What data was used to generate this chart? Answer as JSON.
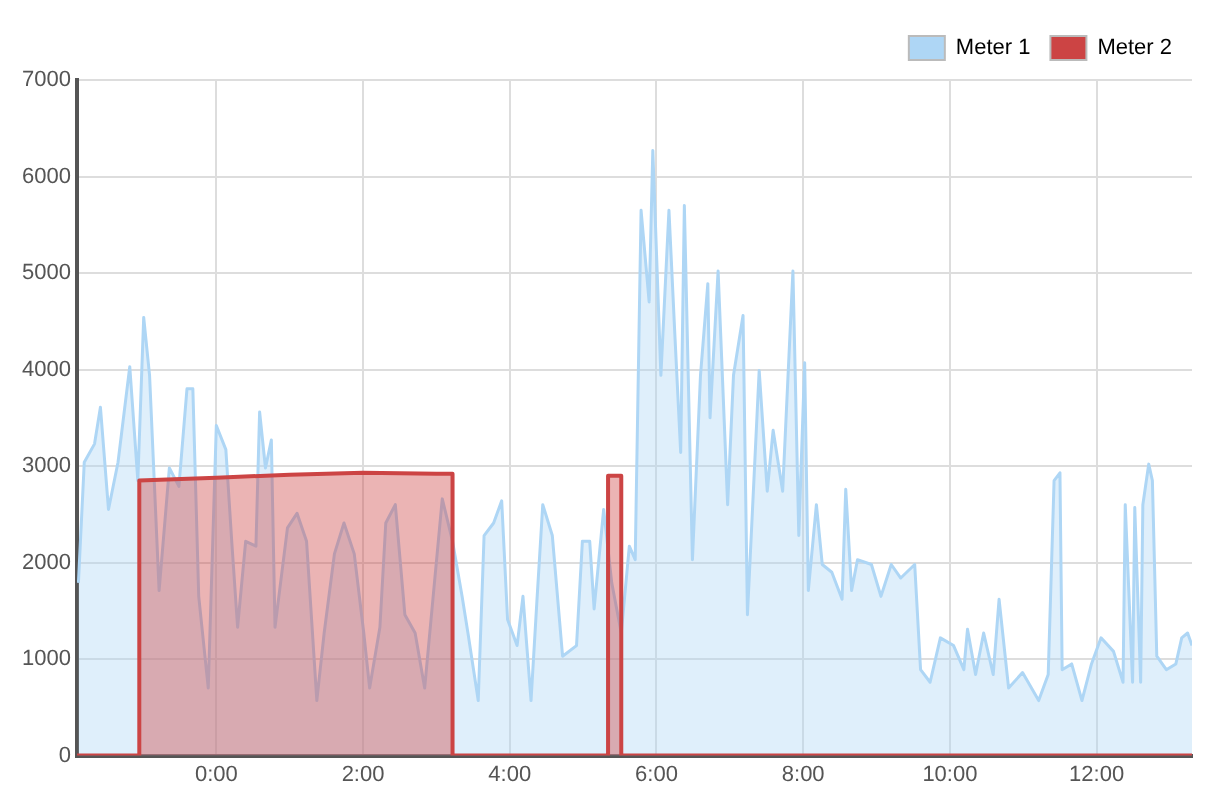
{
  "chart_data": {
    "type": "area",
    "xlim": [
      -1.9,
      13.3
    ],
    "ylim": [
      0,
      7000
    ],
    "xticks": [
      {
        "value": 0,
        "label": "0:00"
      },
      {
        "value": 2,
        "label": "2:00"
      },
      {
        "value": 4,
        "label": "4:00"
      },
      {
        "value": 6,
        "label": "6:00"
      },
      {
        "value": 8,
        "label": "8:00"
      },
      {
        "value": 10,
        "label": "10:00"
      },
      {
        "value": 12,
        "label": "12:00"
      }
    ],
    "yticks": [
      0,
      1000,
      2000,
      3000,
      4000,
      5000,
      6000,
      7000
    ],
    "grid": true,
    "legend": "top right",
    "marker": "none",
    "line_style": "solid",
    "series": [
      {
        "name": "Meter 1",
        "color": "#aed6f5",
        "x": [
          -1.88,
          -1.8,
          -1.66,
          -1.58,
          -1.47,
          -1.34,
          -1.18,
          -1.07,
          -0.99,
          -0.91,
          -0.78,
          -0.64,
          -0.51,
          -0.4,
          -0.32,
          -0.24,
          -0.11,
          0,
          0.13,
          0.21,
          0.29,
          0.4,
          0.54,
          0.59,
          0.67,
          0.75,
          0.8,
          0.97,
          1.1,
          1.23,
          1.37,
          1.47,
          1.61,
          1.74,
          1.88,
          2.01,
          2.09,
          2.23,
          2.31,
          2.44,
          2.57,
          2.71,
          2.84,
          2.95,
          3.08,
          3.22,
          3.35,
          3.43,
          3.57,
          3.65,
          3.78,
          3.89,
          3.97,
          4.1,
          4.18,
          4.29,
          4.37,
          4.45,
          4.58,
          4.72,
          4.91,
          4.99,
          5.09,
          5.15,
          5.28,
          5.39,
          5.52,
          5.63,
          5.71,
          5.79,
          5.9,
          5.95,
          6.06,
          6.17,
          6.25,
          6.33,
          6.38,
          6.49,
          6.6,
          6.7,
          6.73,
          6.84,
          6.97,
          7.05,
          7.18,
          7.24,
          7.4,
          7.51,
          7.59,
          7.72,
          7.86,
          7.94,
          8.02,
          8.07,
          8.18,
          8.26,
          8.39,
          8.53,
          8.58,
          8.66,
          8.74,
          8.93,
          9.06,
          9.2,
          9.33,
          9.52,
          9.6,
          9.73,
          9.87,
          10.05,
          10.19,
          10.24,
          10.35,
          10.46,
          10.59,
          10.67,
          10.8,
          10.99,
          11.21,
          11.34,
          11.42,
          11.5,
          11.53,
          11.66,
          11.8,
          11.93,
          12.06,
          12.23,
          12.36,
          12.39,
          12.49,
          12.52,
          12.6,
          12.63,
          12.71,
          12.76,
          12.82,
          12.95,
          13.08,
          13.16,
          13.24,
          13.3
        ],
        "values": [
          1790,
          3040,
          3230,
          3610,
          2550,
          3040,
          4030,
          2850,
          4540,
          3940,
          1710,
          2980,
          2790,
          3800,
          3800,
          1650,
          700,
          3420,
          3170,
          2220,
          1330,
          2220,
          2170,
          3560,
          2980,
          3270,
          1330,
          2360,
          2510,
          2220,
          570,
          1270,
          2090,
          2410,
          2090,
          1270,
          700,
          1330,
          2410,
          2600,
          1460,
          1270,
          700,
          1600,
          2660,
          2220,
          1650,
          1270,
          570,
          2280,
          2410,
          2640,
          1410,
          1140,
          1650,
          570,
          1600,
          2600,
          2280,
          1030,
          1140,
          2220,
          2220,
          1520,
          2550,
          1790,
          1270,
          2170,
          2030,
          5650,
          4700,
          6270,
          3940,
          5650,
          4370,
          3140,
          5700,
          2030,
          3940,
          4890,
          3500,
          5020,
          2600,
          3940,
          4560,
          1460,
          3990,
          2740,
          3370,
          2740,
          5020,
          2280,
          4070,
          1710,
          2600,
          1980,
          1900,
          1620,
          2760,
          1710,
          2030,
          1980,
          1650,
          1980,
          1840,
          1980,
          890,
          760,
          1220,
          1140,
          890,
          1310,
          840,
          1270,
          840,
          1620,
          700,
          860,
          570,
          840,
          2850,
          2930,
          890,
          950,
          570,
          950,
          1220,
          1080,
          760,
          2600,
          760,
          2570,
          760,
          2600,
          3020,
          2850,
          1030,
          890,
          950,
          1220,
          1270,
          1140
        ]
      },
      {
        "name": "Meter 2",
        "color": "#cc4444",
        "x": [
          -1.9,
          -1.05,
          -1.05,
          0,
          1,
          2,
          3,
          3.22,
          3.22,
          5.34,
          5.34,
          5.52,
          5.52,
          13.3
        ],
        "values": [
          0,
          0,
          2850,
          2880,
          2910,
          2930,
          2920,
          2920,
          0,
          0,
          2900,
          2900,
          0,
          0
        ]
      }
    ]
  }
}
